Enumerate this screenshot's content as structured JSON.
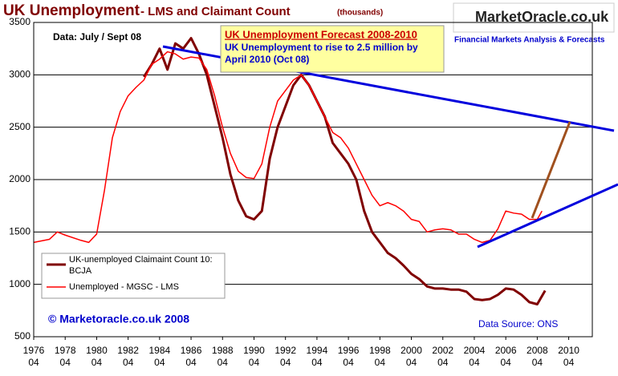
{
  "chart_data": {
    "type": "line",
    "title": "UK Unemployment",
    "subtitle": "- LMS and Claimant Count",
    "unit_note": "(thousands)",
    "annotations": {
      "data_period": "Data: July / Sept 08",
      "forecast_title": "UK Unemployment  Forecast  2008-2010",
      "forecast_line1": "UK Unemployment to rise to 2.5 million by",
      "forecast_line2": "April 2010  (Oct 08)",
      "logo": "MarketOracle.co.uk",
      "logo_tagline": "Financial Markets Analysis & Forecasts",
      "copyright": "© Marketoracle.co.uk  2008",
      "source": "Data Source: ONS"
    },
    "xlim": [
      1976,
      2011.5
    ],
    "xticks": [
      1976,
      1978,
      1980,
      1982,
      1984,
      1986,
      1988,
      1990,
      1992,
      1994,
      1996,
      1998,
      2000,
      2002,
      2004,
      2006,
      2008,
      2010
    ],
    "xtick_quarter": "04",
    "ylim": [
      500,
      3500
    ],
    "yticks": [
      500,
      1000,
      1500,
      2000,
      2500,
      3000,
      3500
    ],
    "grid": true,
    "series": [
      {
        "name": "UK-unemployed Claimaint Count 10: BCJA",
        "color": "#800000",
        "x": [
          1983,
          1983.5,
          1984,
          1984.5,
          1985,
          1985.5,
          1986,
          1986.5,
          1987,
          1987.5,
          1988,
          1988.5,
          1989,
          1989.5,
          1990,
          1990.5,
          1991,
          1991.5,
          1992,
          1992.5,
          1993,
          1993.5,
          1994,
          1994.5,
          1995,
          1995.5,
          1996,
          1996.5,
          1997,
          1997.5,
          1998,
          1998.5,
          1999,
          1999.5,
          2000,
          2000.5,
          2001,
          2001.5,
          2002,
          2002.5,
          2003,
          2003.5,
          2004,
          2004.5,
          2005,
          2005.5,
          2006,
          2006.5,
          2007,
          2007.5,
          2008,
          2008.5
        ],
        "values": [
          2980,
          3100,
          3250,
          3050,
          3300,
          3250,
          3350,
          3200,
          3000,
          2700,
          2400,
          2050,
          1800,
          1650,
          1620,
          1700,
          2200,
          2500,
          2700,
          2900,
          3000,
          2900,
          2750,
          2600,
          2350,
          2250,
          2150,
          2000,
          1700,
          1500,
          1400,
          1300,
          1250,
          1180,
          1100,
          1050,
          980,
          960,
          960,
          950,
          950,
          930,
          860,
          850,
          860,
          900,
          960,
          950,
          900,
          830,
          810,
          940
        ]
      },
      {
        "name": "Unemployed - MGSC - LMS",
        "color": "#ff0000",
        "x": [
          1976,
          1977,
          1977.5,
          1978,
          1979,
          1979.5,
          1980,
          1980.5,
          1981,
          1981.5,
          1982,
          1982.5,
          1983,
          1983.5,
          1984,
          1984.5,
          1985,
          1985.5,
          1986,
          1986.5,
          1987,
          1987.5,
          1988,
          1988.5,
          1989,
          1989.5,
          1990,
          1990.5,
          1991,
          1991.5,
          1992,
          1992.5,
          1993,
          1993.5,
          1994,
          1994.5,
          1995,
          1995.5,
          1996,
          1996.5,
          1997,
          1997.5,
          1998,
          1998.5,
          1999,
          1999.5,
          2000,
          2000.5,
          2001,
          2001.5,
          2002,
          2002.5,
          2003,
          2003.5,
          2004,
          2004.5,
          2005,
          2005.5,
          2006,
          2006.5,
          2007,
          2007.5,
          2008,
          2008.3
        ],
        "values": [
          1400,
          1430,
          1500,
          1470,
          1420,
          1400,
          1480,
          1900,
          2400,
          2650,
          2800,
          2880,
          2950,
          3100,
          3150,
          3220,
          3200,
          3150,
          3170,
          3160,
          3050,
          2800,
          2500,
          2250,
          2080,
          2020,
          2010,
          2150,
          2500,
          2750,
          2850,
          2950,
          3000,
          2900,
          2750,
          2600,
          2450,
          2400,
          2300,
          2150,
          2000,
          1850,
          1750,
          1780,
          1750,
          1700,
          1620,
          1600,
          1500,
          1520,
          1530,
          1520,
          1480,
          1480,
          1430,
          1400,
          1420,
          1530,
          1700,
          1680,
          1670,
          1620,
          1620,
          1700
        ]
      }
    ]
  }
}
